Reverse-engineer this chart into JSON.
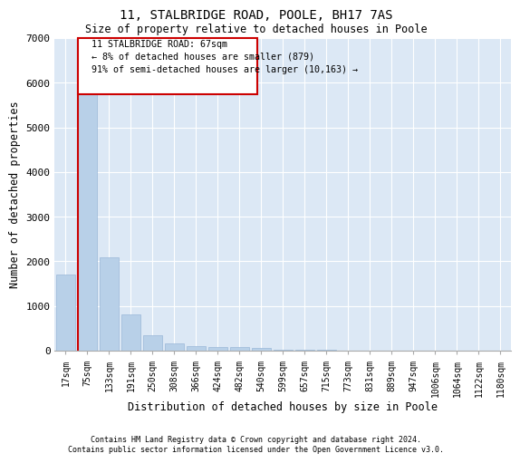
{
  "title1": "11, STALBRIDGE ROAD, POOLE, BH17 7AS",
  "title2": "Size of property relative to detached houses in Poole",
  "xlabel": "Distribution of detached houses by size in Poole",
  "ylabel": "Number of detached properties",
  "annotation_line1": "  11 STALBRIDGE ROAD: 67sqm",
  "annotation_line2": "  ← 8% of detached houses are smaller (879)",
  "annotation_line3": "  91% of semi-detached houses are larger (10,163) →",
  "footnote1": "Contains HM Land Registry data © Crown copyright and database right 2024.",
  "footnote2": "Contains public sector information licensed under the Open Government Licence v3.0.",
  "bar_color": "#b8d0e8",
  "bar_edge_color": "#9ab8d8",
  "red_line_color": "#cc0000",
  "annotation_box_edge_color": "#cc0000",
  "background_color": "#dce8f5",
  "grid_color": "#ffffff",
  "categories": [
    "17sqm",
    "75sqm",
    "133sqm",
    "191sqm",
    "250sqm",
    "308sqm",
    "366sqm",
    "424sqm",
    "482sqm",
    "540sqm",
    "599sqm",
    "657sqm",
    "715sqm",
    "773sqm",
    "831sqm",
    "889sqm",
    "947sqm",
    "1006sqm",
    "1064sqm",
    "1122sqm",
    "1180sqm"
  ],
  "values": [
    1700,
    5800,
    2100,
    820,
    340,
    160,
    110,
    90,
    80,
    70,
    30,
    25,
    20,
    0,
    0,
    0,
    0,
    0,
    0,
    0,
    0
  ],
  "ylim": [
    0,
    7000
  ],
  "yticks": [
    0,
    1000,
    2000,
    3000,
    4000,
    5000,
    6000,
    7000
  ],
  "red_line_bar_index": 0.5
}
